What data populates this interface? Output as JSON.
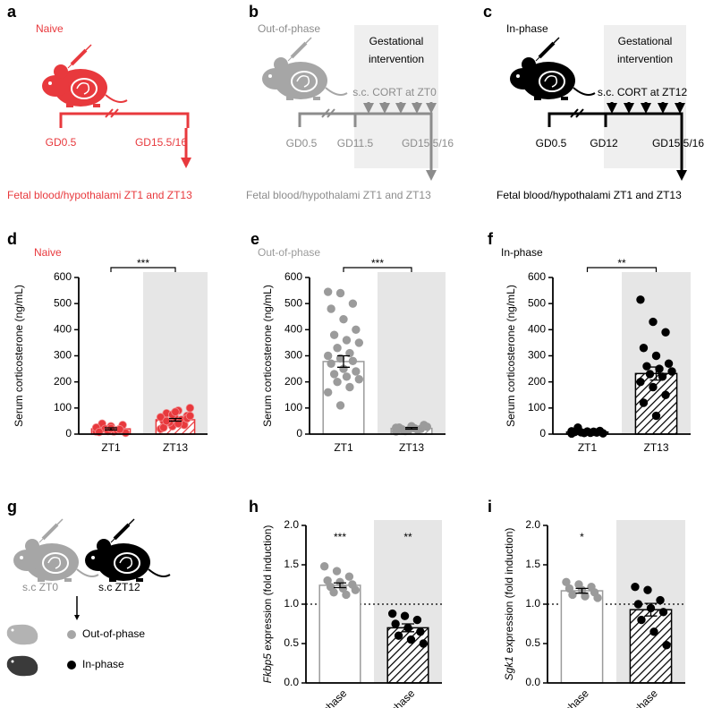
{
  "diagrams": {
    "a": {
      "panel": "a",
      "title": "Naive",
      "timepoints": [
        "GD0.5",
        "GD15.5/16"
      ],
      "outcome": "Fetal blood/hypothalami ZT1 and ZT13"
    },
    "b": {
      "panel": "b",
      "title": "Out-of-phase",
      "intervention": [
        "Gestational",
        "intervention"
      ],
      "treatment": "s.c. CORT at ZT0",
      "timepoints": [
        "GD0.5",
        "GD11.5",
        "GD15.5/16"
      ],
      "outcome": "Fetal blood/hypothalami ZT1 and ZT13"
    },
    "c": {
      "panel": "c",
      "title": "In-phase",
      "intervention": [
        "Gestational",
        "intervention"
      ],
      "treatment": "s.c. CORT at ZT12",
      "timepoints": [
        "GD0.5",
        "GD12",
        "GD15.5/16"
      ],
      "outcome": "Fetal blood/hypothalami ZT1 and ZT13"
    },
    "g": {
      "panel": "g",
      "mice": [
        "s.c ZT0",
        "s.c ZT12"
      ],
      "legend": [
        "Out-of-phase",
        "In-phase"
      ]
    }
  },
  "chart_data": [
    {
      "type": "bar",
      "panel": "d",
      "title": "Naive",
      "ylabel": "Serum corticosterone (ng/mL)",
      "color": "#e8393d",
      "categories": [
        "ZT1",
        "ZT13"
      ],
      "values": [
        20,
        55
      ],
      "errors": [
        4,
        5
      ],
      "points": [
        [
          10,
          15,
          20,
          25,
          30,
          35,
          40,
          10,
          5,
          20,
          15,
          25,
          12,
          18,
          8,
          22
        ],
        [
          20,
          30,
          40,
          50,
          60,
          70,
          80,
          90,
          100,
          45,
          55,
          65,
          75,
          35,
          25,
          85,
          60,
          50,
          40,
          70
        ]
      ],
      "fills": [
        "open",
        "hatched"
      ],
      "shaded": [
        false,
        true
      ],
      "bracket": "***",
      "ylim": [
        0,
        600
      ],
      "yticks": [
        0,
        100,
        200,
        300,
        400,
        500,
        600
      ]
    },
    {
      "type": "bar",
      "panel": "e",
      "title": "Out-of-phase",
      "ylabel": "Serum corticosterone (ng/mL)",
      "color": "#9b9b9b",
      "categories": [
        "ZT1",
        "ZT13"
      ],
      "values": [
        278,
        22
      ],
      "errors": [
        22,
        3
      ],
      "points": [
        [
          545,
          540,
          500,
          480,
          440,
          400,
          380,
          360,
          350,
          330,
          310,
          300,
          290,
          280,
          270,
          250,
          240,
          230,
          220,
          210,
          200,
          180,
          160,
          110
        ],
        [
          10,
          15,
          20,
          25,
          30,
          35,
          18,
          22,
          28,
          12,
          16,
          24
        ]
      ],
      "fills": [
        "open",
        "hatched"
      ],
      "shaded": [
        false,
        true
      ],
      "bracket": "***",
      "ylim": [
        0,
        600
      ],
      "yticks": [
        0,
        100,
        200,
        300,
        400,
        500,
        600
      ]
    },
    {
      "type": "bar",
      "panel": "f",
      "title": "In-phase",
      "ylabel": "Serum corticosterone (ng/mL)",
      "color": "#000000",
      "categories": [
        "ZT1",
        "ZT13"
      ],
      "values": [
        8,
        232
      ],
      "errors": [
        2,
        25
      ],
      "points": [
        [
          2,
          4,
          6,
          8,
          10,
          12,
          25,
          5,
          3,
          7,
          9,
          11
        ],
        [
          515,
          430,
          390,
          330,
          300,
          270,
          260,
          250,
          240,
          230,
          220,
          200,
          180,
          150,
          120,
          70
        ]
      ],
      "fills": [
        "open",
        "hatched"
      ],
      "shaded": [
        false,
        true
      ],
      "bracket": "**",
      "ylim": [
        0,
        600
      ],
      "yticks": [
        0,
        100,
        200,
        300,
        400,
        500,
        600
      ]
    },
    {
      "type": "bar",
      "panel": "h",
      "ylabel_gene": "Fkbp5",
      "ylabel": " expression (fold induction)",
      "colors": [
        "#9b9b9b",
        "#000000"
      ],
      "categories": [
        "Out-of-phase",
        "In-phase"
      ],
      "values": [
        1.24,
        0.7
      ],
      "errors": [
        0.03,
        0.05
      ],
      "points": [
        [
          1.48,
          1.42,
          1.35,
          1.3,
          1.28,
          1.25,
          1.22,
          1.2,
          1.18,
          1.15,
          1.12
        ],
        [
          0.88,
          0.85,
          0.8,
          0.75,
          0.7,
          0.65,
          0.6,
          0.55,
          0.5
        ]
      ],
      "fills": [
        "open",
        "hatched"
      ],
      "shaded": [
        false,
        true
      ],
      "stars": [
        "***",
        "**"
      ],
      "hline": 1,
      "ylim": [
        0,
        2
      ],
      "yticks": [
        {
          "value": 0,
          "label": "0.0"
        },
        0.5,
        {
          "value": 1,
          "label": "1.0"
        },
        1.5,
        {
          "value": 2,
          "label": "2.0"
        }
      ]
    },
    {
      "type": "bar",
      "panel": "i",
      "ylabel_gene": "Sgk1",
      "ylabel": " expression (fold induction)",
      "colors": [
        "#9b9b9b",
        "#000000"
      ],
      "categories": [
        "Out-of-phase",
        "In-phase"
      ],
      "values": [
        1.17,
        0.93
      ],
      "errors": [
        0.03,
        0.08
      ],
      "points": [
        [
          1.28,
          1.25,
          1.22,
          1.2,
          1.18,
          1.15,
          1.12,
          1.1,
          1.08
        ],
        [
          1.22,
          1.18,
          1.05,
          1.0,
          0.95,
          0.9,
          0.8,
          0.65,
          0.48
        ]
      ],
      "fills": [
        "open",
        "hatched"
      ],
      "shaded": [
        false,
        true
      ],
      "stars": [
        "*",
        null
      ],
      "hline": 1,
      "ylim": [
        0,
        2
      ],
      "yticks": [
        {
          "value": 0,
          "label": "0.0"
        },
        0.5,
        {
          "value": 1,
          "label": "1.0"
        },
        1.5,
        {
          "value": 2,
          "label": "2.0"
        }
      ]
    }
  ]
}
